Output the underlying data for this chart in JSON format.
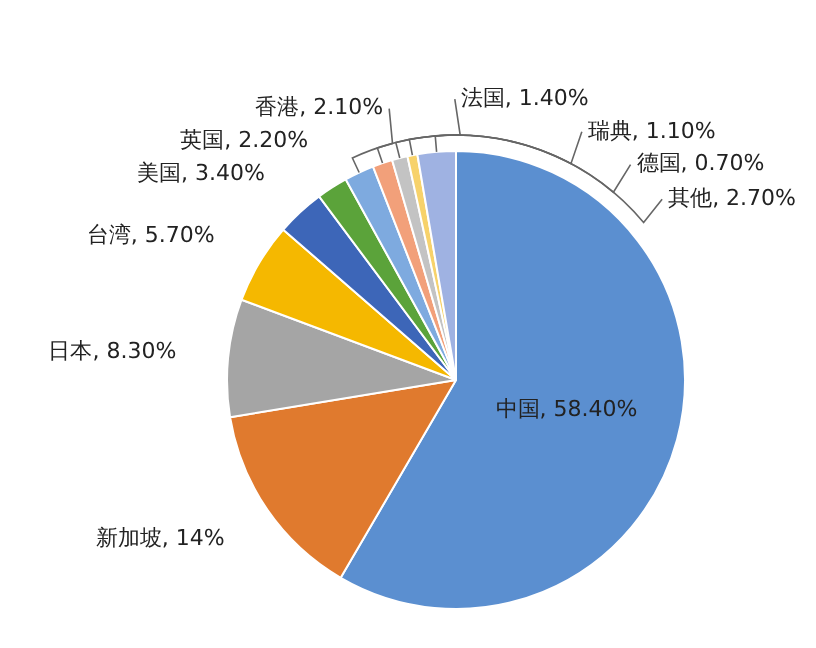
{
  "chart_data": {
    "type": "pie",
    "categories": [
      "中国",
      "新加坡",
      "日本",
      "台湾",
      "美国",
      "英国",
      "香港",
      "法国",
      "瑞典",
      "德国",
      "其他"
    ],
    "values": [
      58.4,
      14,
      8.3,
      5.7,
      3.4,
      2.2,
      2.1,
      1.4,
      1.1,
      0.7,
      2.7
    ],
    "value_labels": [
      "58.40%",
      "14%",
      "8.30%",
      "5.70%",
      "3.40%",
      "2.20%",
      "2.10%",
      "1.40%",
      "1.10%",
      "0.70%",
      "2.70%"
    ],
    "colors": [
      "#5b8fd0",
      "#e07a2e",
      "#a5a5a5",
      "#f5b800",
      "#3d66b8",
      "#5ba33a",
      "#7eaadf",
      "#f2a07a",
      "#c3c3c3",
      "#f7d26b",
      "#9fb2e2"
    ],
    "legend": false
  }
}
